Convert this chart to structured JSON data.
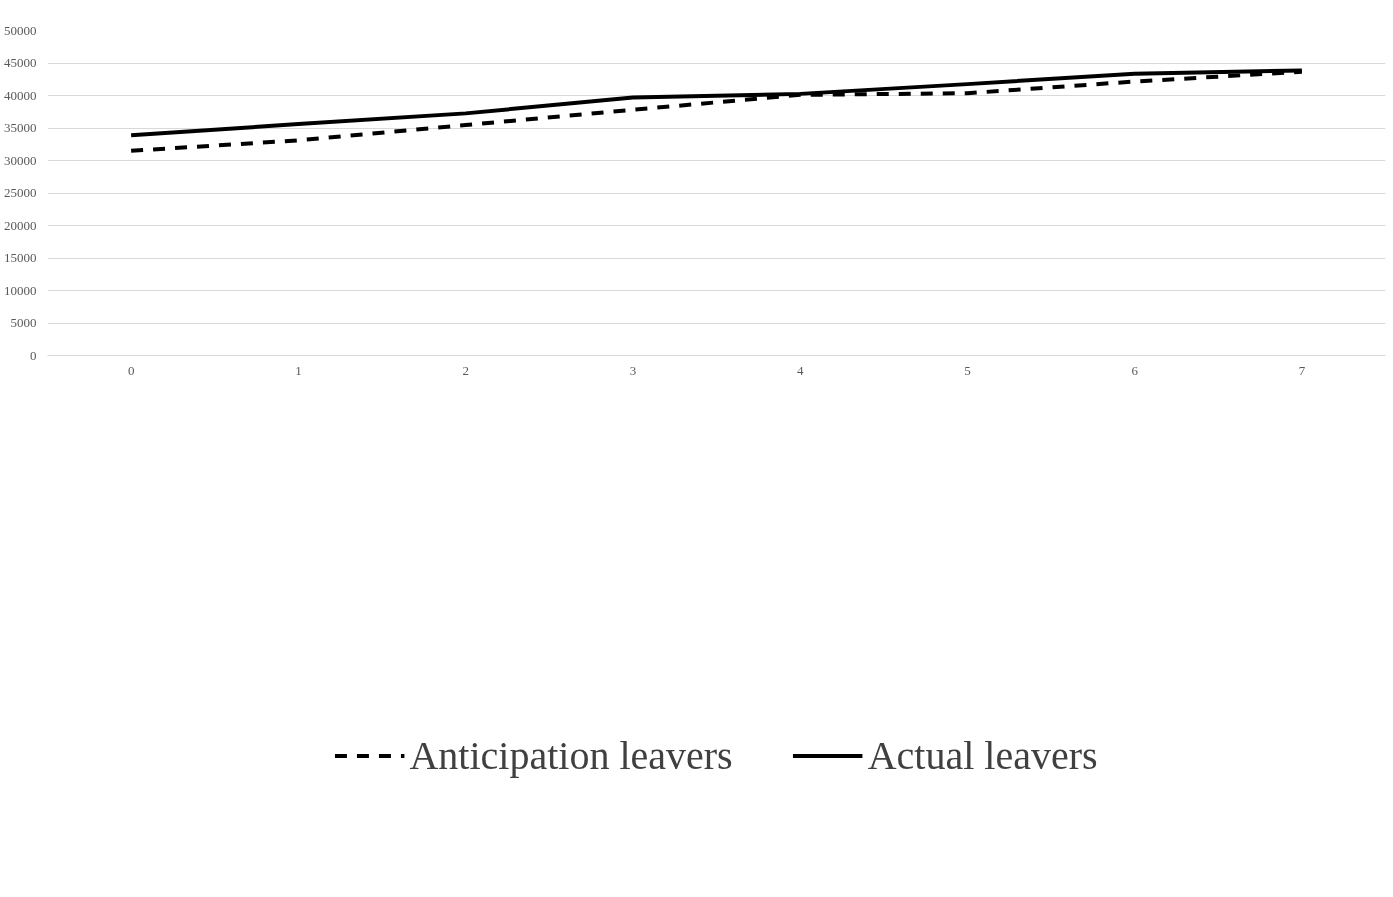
{
  "chart_data": {
    "type": "line",
    "categories": [
      "0",
      "1",
      "2",
      "3",
      "4",
      "5",
      "6",
      "7"
    ],
    "series": [
      {
        "name": "Anticipation leavers",
        "color": "#000000",
        "line_style": "dashed",
        "values": [
          31500,
          33100,
          35450,
          37800,
          40100,
          40350,
          42150,
          43650
        ]
      },
      {
        "name": "Actual leavers",
        "color": "#000000",
        "line_style": "solid",
        "values": [
          33900,
          35600,
          37250,
          39700,
          40250,
          41750,
          43350,
          43850
        ]
      }
    ],
    "ylim": [
      0,
      50000
    ],
    "yticks": [
      0,
      5000,
      10000,
      15000,
      20000,
      25000,
      30000,
      35000,
      40000,
      45000,
      50000
    ],
    "grid": "y",
    "legend": "bottom",
    "marker": "none"
  }
}
